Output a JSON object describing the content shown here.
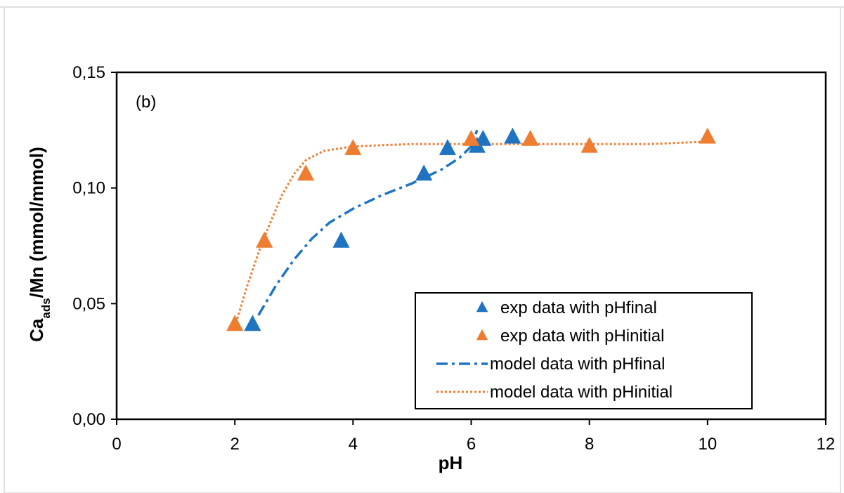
{
  "chart_data": {
    "type": "scatter",
    "annotation": "(b)",
    "xlabel": "pH",
    "ylabel": {
      "main": "Ca",
      "sub": "ads",
      "rest": "/Mn (mmol/mmol)"
    },
    "xlim": [
      0,
      12
    ],
    "ylim": [
      0,
      0.15
    ],
    "x_ticks": [
      0,
      2,
      4,
      6,
      8,
      10,
      12
    ],
    "x_tick_labels": [
      "0",
      "2",
      "4",
      "6",
      "8",
      "10",
      "12"
    ],
    "y_ticks": [
      0,
      0.05,
      0.1,
      0.15
    ],
    "y_tick_labels": [
      "0,00",
      "0,05",
      "0,10",
      "0,15"
    ],
    "grid": false,
    "legend_position": "bottom-right",
    "series": [
      {
        "name": "exp data with pHfinal",
        "kind": "marker",
        "marker": "triangle",
        "color": "#1F74C2",
        "x": [
          2.3,
          3.8,
          5.2,
          5.6,
          6.1,
          6.2,
          6.7
        ],
        "y": [
          0.041,
          0.077,
          0.106,
          0.117,
          0.118,
          0.121,
          0.122
        ]
      },
      {
        "name": "exp data with pHinitial",
        "kind": "marker",
        "marker": "triangle",
        "color": "#EE7D31",
        "x": [
          2.0,
          2.5,
          3.2,
          4.0,
          6.0,
          7.0,
          8.0,
          10.0
        ],
        "y": [
          0.041,
          0.077,
          0.106,
          0.117,
          0.121,
          0.121,
          0.118,
          0.122
        ]
      },
      {
        "name": "model data with pHfinal",
        "kind": "line",
        "style": "dash-dot",
        "color": "#1F74C2",
        "x": [
          2.4,
          2.7,
          3.0,
          3.3,
          3.6,
          4.0,
          4.5,
          5.0,
          5.5,
          5.8,
          6.0,
          6.1
        ],
        "y": [
          0.045,
          0.058,
          0.069,
          0.078,
          0.085,
          0.091,
          0.097,
          0.102,
          0.108,
          0.113,
          0.118,
          0.125
        ]
      },
      {
        "name": "model data with pHinitial",
        "kind": "line",
        "style": "dotted",
        "color": "#EE7D31",
        "x": [
          2.0,
          2.2,
          2.4,
          2.6,
          2.8,
          3.0,
          3.2,
          3.5,
          4.0,
          5.0,
          6.0,
          7.0,
          8.0,
          9.0,
          10.0
        ],
        "y": [
          0.04,
          0.057,
          0.072,
          0.085,
          0.097,
          0.106,
          0.112,
          0.116,
          0.118,
          0.119,
          0.119,
          0.119,
          0.119,
          0.119,
          0.12
        ]
      }
    ]
  }
}
